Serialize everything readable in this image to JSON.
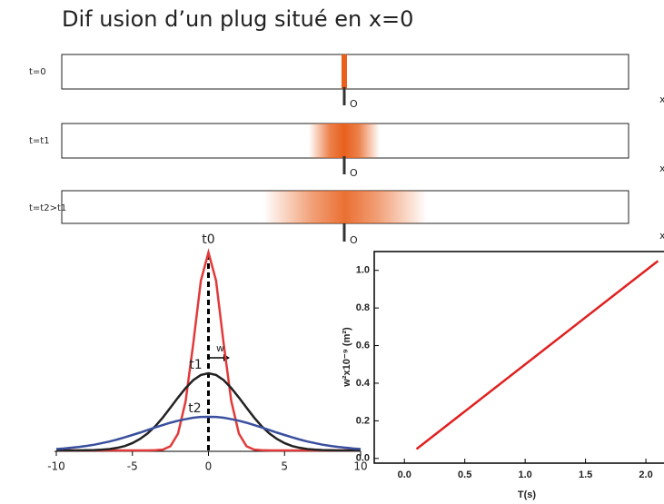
{
  "title": "Dif usion d’un plug situé en x=0",
  "tubes": [
    {
      "label": "t=0",
      "origin": "O",
      "axis": "x"
    },
    {
      "label": "t=t1",
      "origin": "O",
      "axis": "x"
    },
    {
      "label": "t=t2>t1",
      "origin": "O",
      "axis": "x"
    }
  ],
  "chart_data": [
    {
      "type": "line",
      "x": [
        -10,
        -9.5,
        -9,
        -8.5,
        -8,
        -7.5,
        -7,
        -6.5,
        -6,
        -5.5,
        -5,
        -4.5,
        -4,
        -3.5,
        -3,
        -2.5,
        -2,
        -1.5,
        -1,
        -0.5,
        0,
        0.5,
        1,
        1.5,
        2,
        2.5,
        3,
        3.5,
        4,
        4.5,
        5,
        5.5,
        6,
        6.5,
        7,
        7.5,
        8,
        8.5,
        9,
        9.5,
        10
      ],
      "series": [
        {
          "name": "t0",
          "color": "#e23a3a",
          "values": [
            0,
            0,
            0,
            0,
            0,
            0,
            0,
            0,
            0,
            0,
            0,
            0,
            0,
            0.001,
            0.004,
            0.021,
            0.085,
            0.249,
            0.539,
            0.857,
            1,
            0.857,
            0.539,
            0.249,
            0.085,
            0.021,
            0.004,
            0.001,
            0,
            0,
            0,
            0,
            0,
            0,
            0,
            0,
            0,
            0,
            0,
            0,
            0
          ]
        },
        {
          "name": "t1",
          "color": "#222222",
          "values": [
            0,
            0,
            0,
            0,
            0.001,
            0.002,
            0.004,
            0.007,
            0.013,
            0.022,
            0.037,
            0.058,
            0.086,
            0.122,
            0.166,
            0.216,
            0.267,
            0.315,
            0.355,
            0.381,
            0.39,
            0.381,
            0.355,
            0.315,
            0.267,
            0.216,
            0.166,
            0.122,
            0.086,
            0.058,
            0.037,
            0.022,
            0.013,
            0.007,
            0.004,
            0.002,
            0.001,
            0,
            0,
            0,
            0
          ]
        },
        {
          "name": "t2",
          "color": "#3a4f9e",
          "values": [
            0.007,
            0.01,
            0.014,
            0.018,
            0.023,
            0.029,
            0.037,
            0.045,
            0.055,
            0.066,
            0.078,
            0.09,
            0.103,
            0.116,
            0.128,
            0.14,
            0.15,
            0.158,
            0.165,
            0.169,
            0.17,
            0.169,
            0.165,
            0.158,
            0.15,
            0.14,
            0.128,
            0.116,
            0.103,
            0.09,
            0.078,
            0.066,
            0.055,
            0.045,
            0.037,
            0.029,
            0.023,
            0.018,
            0.014,
            0.01,
            0.007
          ]
        }
      ],
      "annotation": "w",
      "vline": 0,
      "xlim": [
        -10,
        10
      ],
      "xticks": [
        -10,
        -5,
        0,
        5,
        10
      ],
      "ylim": [
        0,
        1
      ]
    },
    {
      "type": "line",
      "x": [
        0.1,
        2.1
      ],
      "series": [
        {
          "color": "#e02020",
          "values": [
            0.05,
            1.05
          ]
        }
      ],
      "xlabel": "T(s)",
      "ylabel": "w²x10⁻⁹ (m²)",
      "xlim": [
        -0.25,
        2.15
      ],
      "xticks": [
        {
          "value": 0,
          "label": "0.0"
        },
        {
          "value": 0.5,
          "label": "0.5"
        },
        {
          "value": 1,
          "label": "1.0"
        },
        {
          "value": 1.5,
          "label": "1.5"
        },
        {
          "value": 2,
          "label": "2.0"
        }
      ],
      "ylim": [
        -0.025,
        1.1
      ],
      "yticks": [
        {
          "value": 0,
          "label": "0.0"
        },
        {
          "value": 0.2,
          "label": "0.2"
        },
        {
          "value": 0.4,
          "label": "0.4"
        },
        {
          "value": 0.6,
          "label": "0.6"
        },
        {
          "value": 0.8,
          "label": "0.8"
        },
        {
          "value": 1,
          "label": "1.0"
        }
      ]
    }
  ]
}
